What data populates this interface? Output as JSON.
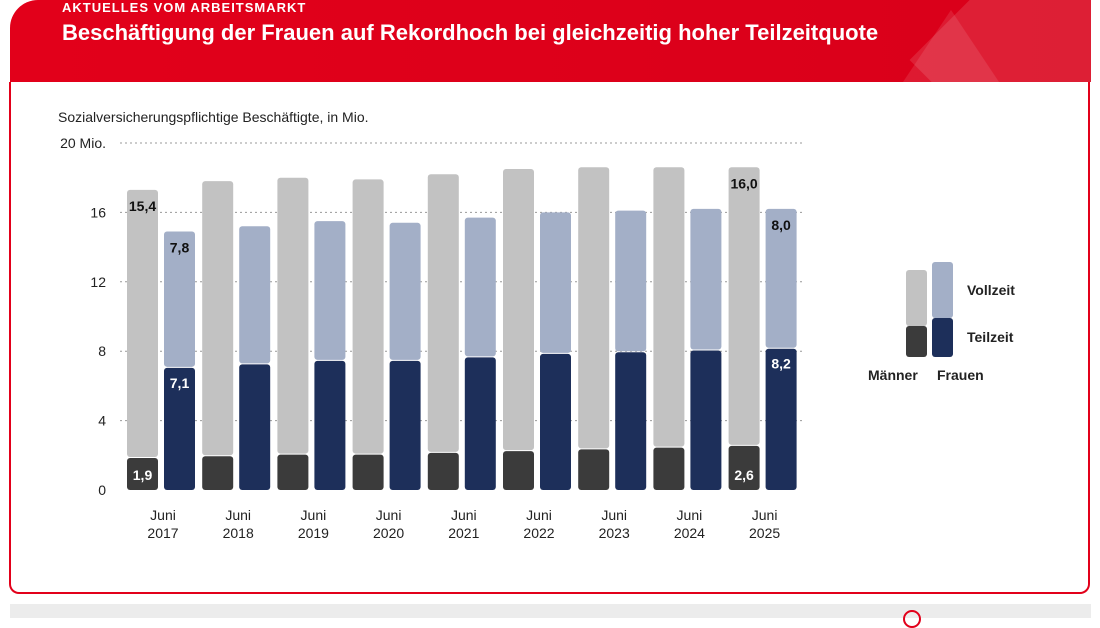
{
  "header": {
    "kicker": "AKTUELLES VOM ARBEITSMARKT",
    "title": "Beschäftigung der Frauen auf Rekordhoch bei gleichzeitig hoher Teilzeitquote"
  },
  "chart_data": {
    "type": "bar",
    "ylabel": "Sozialversicherungspflichtige Beschäftigte, in Mio.",
    "ylim": [
      0,
      20
    ],
    "y_ticks": [
      "0",
      "4",
      "8",
      "12",
      "16",
      "20 Mio."
    ],
    "tick_values": [
      0,
      4,
      8,
      12,
      16,
      20
    ],
    "categories": [
      {
        "line1": "Juni",
        "line2": "2017"
      },
      {
        "line1": "Juni",
        "line2": "2018"
      },
      {
        "line1": "Juni",
        "line2": "2019"
      },
      {
        "line1": "Juni",
        "line2": "2020"
      },
      {
        "line1": "Juni",
        "line2": "2021"
      },
      {
        "line1": "Juni",
        "line2": "2022"
      },
      {
        "line1": "Juni",
        "line2": "2023"
      },
      {
        "line1": "Juni",
        "line2": "2024"
      },
      {
        "line1": "Juni",
        "line2": "2025"
      }
    ],
    "series": [
      {
        "group": "Männer",
        "type": "Teilzeit",
        "values": [
          1.9,
          2.0,
          2.1,
          2.1,
          2.2,
          2.3,
          2.4,
          2.5,
          2.6
        ]
      },
      {
        "group": "Männer",
        "type": "Vollzeit",
        "values": [
          15.4,
          15.8,
          15.9,
          15.8,
          16.0,
          16.2,
          16.2,
          16.1,
          16.0
        ]
      },
      {
        "group": "Frauen",
        "type": "Teilzeit",
        "values": [
          7.1,
          7.3,
          7.5,
          7.5,
          7.7,
          7.9,
          8.0,
          8.1,
          8.2
        ]
      },
      {
        "group": "Frauen",
        "type": "Vollzeit",
        "values": [
          7.8,
          7.9,
          8.0,
          7.9,
          8.0,
          8.1,
          8.1,
          8.1,
          8.0
        ]
      }
    ],
    "data_labels": {
      "first": {
        "men_part": "1,9",
        "men_full": "15,4",
        "women_part": "7,1",
        "women_full": "7,8"
      },
      "last": {
        "men_part": "2,6",
        "men_full": "16,0",
        "women_part": "8,2",
        "women_full": "8,0"
      }
    },
    "legend": {
      "position": "right",
      "vollzeit": "Vollzeit",
      "teilzeit": "Teilzeit",
      "maenner": "Männer",
      "frauen": "Frauen"
    },
    "grid": true,
    "colors": {
      "men_part": "#3b3b3b",
      "men_full": "#c2c2c2",
      "women_part": "#1d2f5a",
      "women_full": "#a3afc7"
    }
  }
}
